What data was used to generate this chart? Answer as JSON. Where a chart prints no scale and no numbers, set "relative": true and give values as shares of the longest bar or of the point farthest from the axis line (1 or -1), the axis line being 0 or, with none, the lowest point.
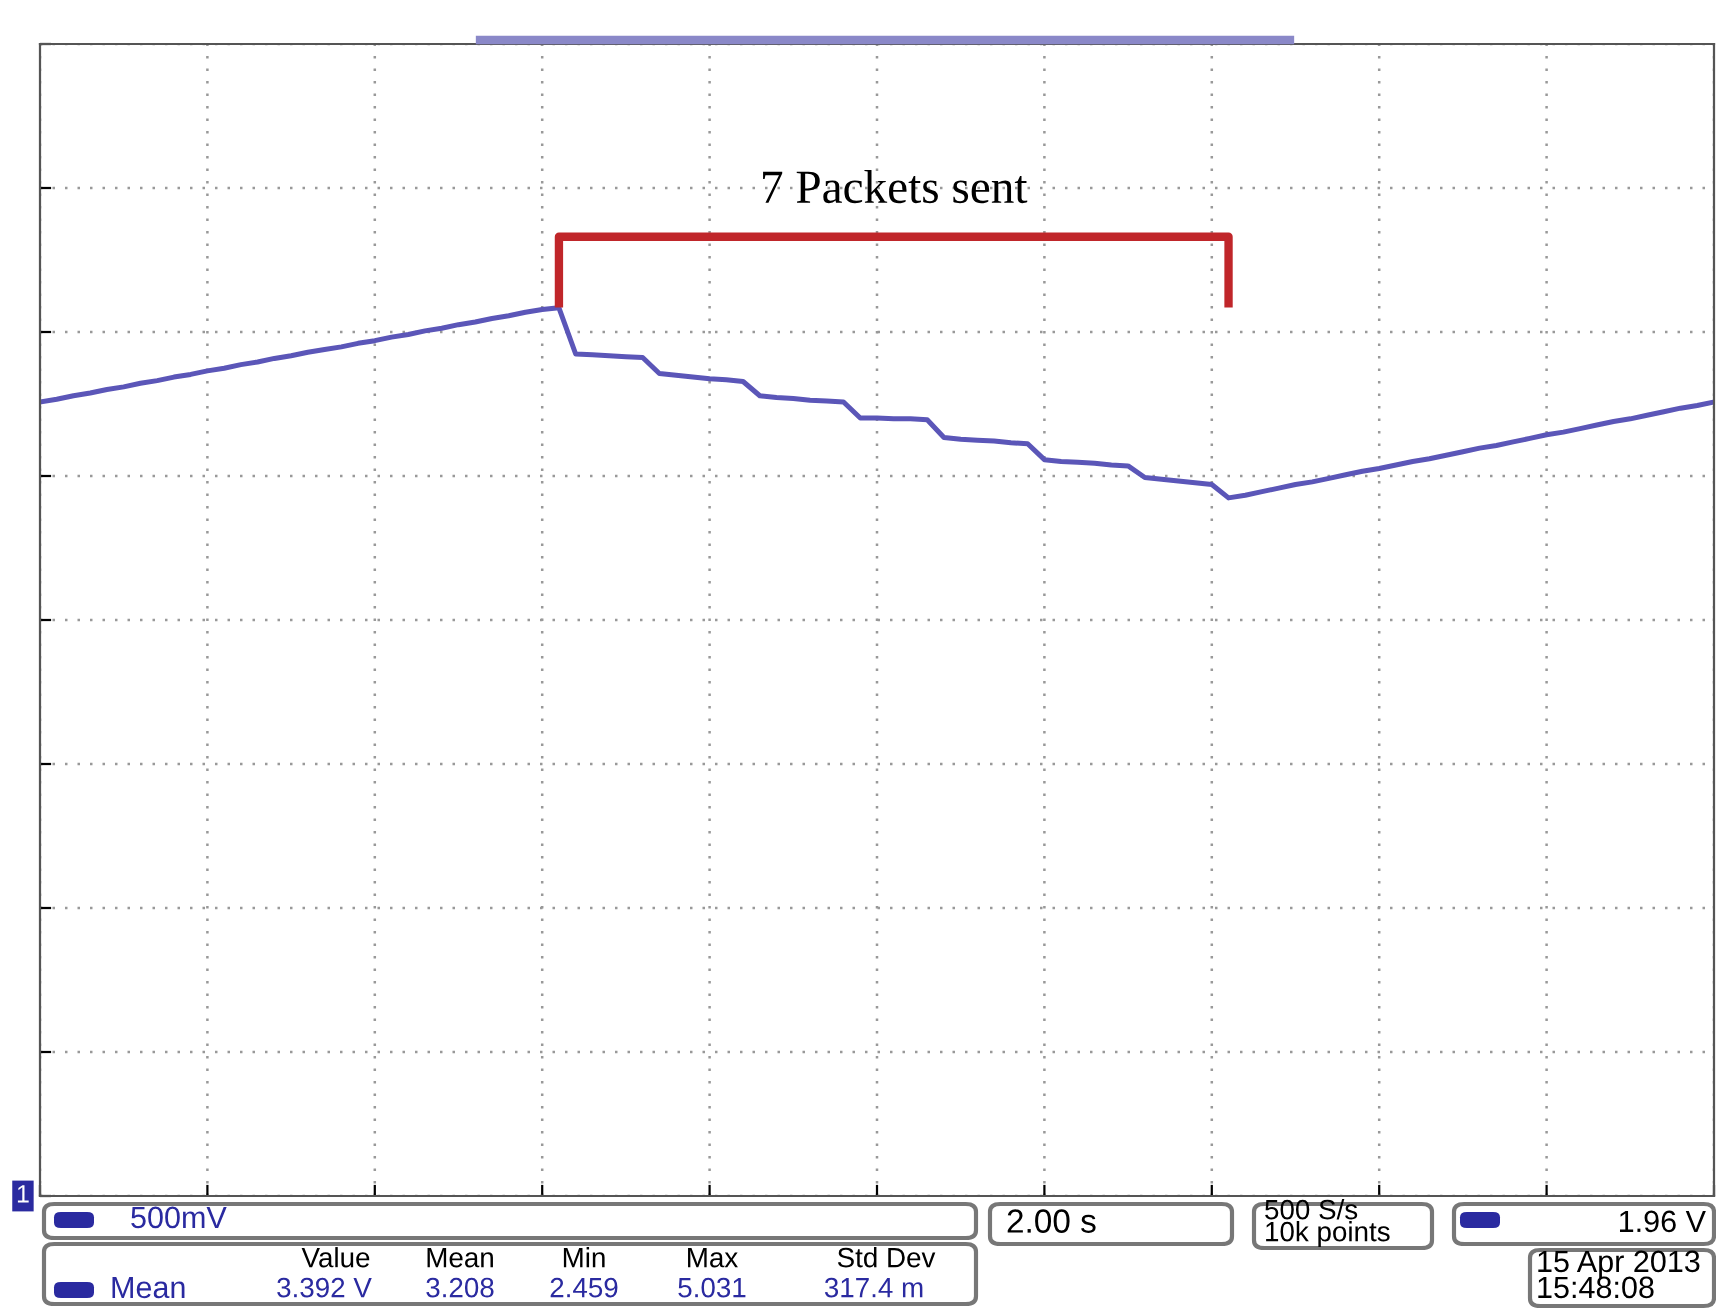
{
  "chart_data": {
    "type": "line",
    "relative": true,
    "grid": true,
    "line_style": "solid",
    "marker": "none",
    "categories": [
      null,
      null,
      null,
      null,
      null,
      null,
      null,
      null,
      null,
      null,
      null,
      null,
      null,
      null,
      null,
      null,
      null,
      null,
      null,
      null,
      null,
      null,
      null,
      null,
      null,
      null,
      null,
      null,
      null,
      null,
      null,
      null,
      null,
      null,
      null,
      null,
      null,
      null,
      null,
      null,
      null,
      null,
      null,
      null,
      null,
      null,
      null,
      null,
      null,
      null,
      null,
      null,
      null,
      null,
      null,
      null,
      null,
      null,
      null,
      null,
      null,
      null,
      null,
      null,
      null,
      null,
      null,
      null,
      null,
      null,
      null,
      null,
      null,
      null,
      null,
      null,
      null,
      null,
      null,
      null,
      null,
      null,
      null,
      null,
      null,
      null,
      null,
      null,
      null,
      null,
      null,
      null,
      null,
      null,
      null,
      null,
      null,
      null,
      null,
      null,
      null
    ],
    "series": [
      {
        "color": "#5b56b8",
        "values": [
          0.894,
          0.897,
          0.901,
          0.904,
          0.908,
          0.911,
          0.915,
          0.918,
          0.922,
          0.925,
          0.929,
          0.932,
          0.936,
          0.939,
          0.943,
          0.946,
          0.95,
          0.953,
          0.956,
          0.96,
          0.963,
          0.967,
          0.97,
          0.974,
          0.977,
          0.981,
          0.984,
          0.988,
          0.991,
          0.995,
          0.998,
          1.0,
          0.948,
          0.947,
          0.946,
          0.945,
          0.944,
          0.926,
          0.924,
          0.922,
          0.92,
          0.919,
          0.917,
          0.901,
          0.899,
          0.898,
          0.896,
          0.895,
          0.894,
          0.876,
          0.876,
          0.875,
          0.875,
          0.874,
          0.854,
          0.852,
          0.851,
          0.85,
          0.848,
          0.847,
          0.829,
          0.827,
          0.826,
          0.825,
          0.823,
          0.822,
          0.809,
          0.807,
          0.805,
          0.803,
          0.801,
          0.786,
          0.789,
          0.793,
          0.797,
          0.801,
          0.804,
          0.808,
          0.812,
          0.816,
          0.819,
          0.823,
          0.827,
          0.83,
          0.834,
          0.838,
          0.842,
          0.845,
          0.849,
          0.853,
          0.857,
          0.86,
          0.864,
          0.868,
          0.872,
          0.875,
          0.879,
          0.883,
          0.887,
          0.89,
          0.894
        ]
      }
    ],
    "annotations": [
      "7 Packets sent",
      "1",
      "500mV",
      "2.00 s",
      "500 S/s",
      "10k points",
      "1.96 V",
      "Value",
      "Mean",
      "Min",
      "Max",
      "Std Dev",
      "Mean",
      "3.392 V",
      "3.208",
      "2.459",
      "5.031",
      "317.4 m",
      "15 Apr 2013",
      "15:48:08"
    ]
  }
}
